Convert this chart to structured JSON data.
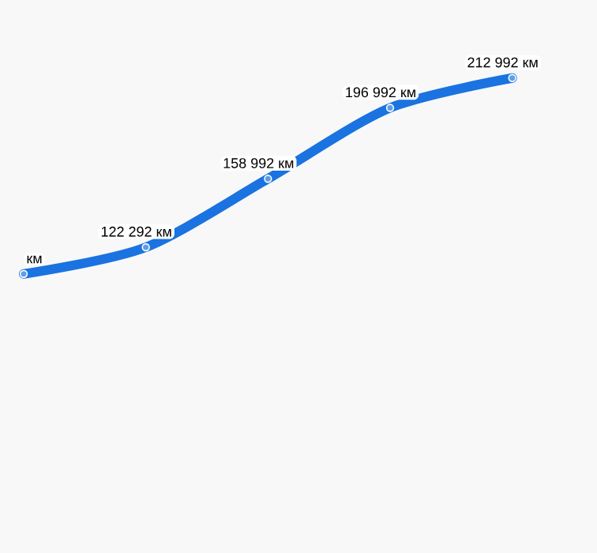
{
  "chart_data": {
    "type": "line",
    "categories": [
      null,
      null,
      null,
      null,
      null
    ],
    "series": [
      {
        "color": "#1a73e0",
        "values": [
          108000,
          122292,
          158992,
          196992,
          212992
        ],
        "value_labels": [
          "км",
          "122 292 км",
          "158 992 км",
          "196 992 км",
          "212 992 км"
        ]
      }
    ],
    "marker": "circle",
    "line_style": "solid"
  }
}
